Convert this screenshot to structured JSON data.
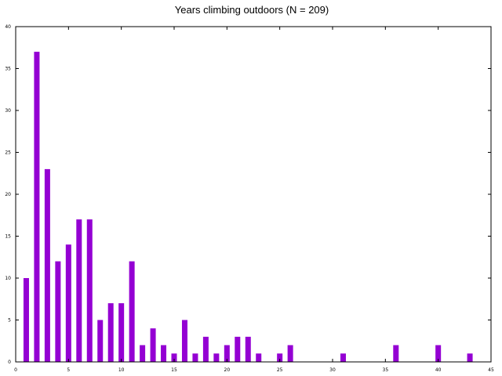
{
  "chart_data": {
    "type": "bar",
    "title": "Years climbing outdoors (N = 209)",
    "xlabel": "",
    "ylabel": "",
    "xlim": [
      0,
      45
    ],
    "ylim": [
      0,
      40
    ],
    "xticks": [
      0,
      5,
      10,
      15,
      20,
      25,
      30,
      35,
      40,
      45
    ],
    "yticks": [
      0,
      5,
      10,
      15,
      20,
      25,
      30,
      35,
      40
    ],
    "grid": false,
    "bar_color": "#9400d3",
    "x": [
      1,
      2,
      3,
      4,
      5,
      6,
      7,
      8,
      9,
      10,
      11,
      12,
      13,
      14,
      15,
      16,
      17,
      18,
      19,
      20,
      21,
      22,
      23,
      25,
      26,
      31,
      36,
      40,
      43
    ],
    "values": [
      10,
      37,
      23,
      12,
      14,
      17,
      17,
      5,
      7,
      7,
      12,
      2,
      4,
      2,
      1,
      5,
      1,
      3,
      1,
      2,
      3,
      3,
      1,
      1,
      2,
      1,
      2,
      2,
      1
    ]
  }
}
